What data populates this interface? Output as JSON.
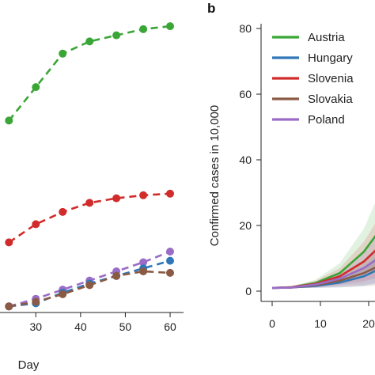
{
  "colors": {
    "green": "#3aa636",
    "blue": "#2f77b8",
    "red": "#d22b2b",
    "brown": "#8a5a44",
    "purple": "#9a6cc8"
  },
  "chart_data": [
    {
      "panel": "",
      "type": "line",
      "xlabel": "Day",
      "ylabel": "",
      "xlim": [
        22,
        63
      ],
      "ylim": [
        0,
        100
      ],
      "xticks": [
        "30",
        "40",
        "50",
        "60"
      ],
      "style": "dashed-with-markers",
      "series": [
        {
          "color": "green",
          "x": [
            24,
            30,
            36,
            42,
            48,
            54,
            60
          ],
          "y": [
            63,
            74,
            85,
            89,
            91,
            93,
            94
          ]
        },
        {
          "color": "red",
          "x": [
            24,
            30,
            36,
            42,
            48,
            54,
            60
          ],
          "y": [
            23,
            29,
            33,
            36,
            37.5,
            38.5,
            39
          ]
        },
        {
          "color": "purple",
          "x": [
            24,
            30,
            36,
            42,
            48,
            54,
            60
          ],
          "y": [
            2,
            4.5,
            7.5,
            10.5,
            13.5,
            16.5,
            20
          ]
        },
        {
          "color": "blue",
          "x": [
            24,
            30,
            36,
            42,
            48,
            54,
            60
          ],
          "y": [
            2,
            3,
            6.5,
            9.5,
            12,
            14.5,
            17
          ]
        },
        {
          "color": "brown",
          "x": [
            24,
            30,
            36,
            42,
            48,
            54,
            60
          ],
          "y": [
            2,
            3.5,
            6,
            9,
            12,
            13.5,
            13
          ]
        }
      ]
    },
    {
      "panel": "b",
      "type": "line",
      "xlabel": "",
      "ylabel": "Confirmed cases in 10,000",
      "xlim": [
        -3,
        28
      ],
      "ylim": [
        -3,
        88
      ],
      "xticks": [
        "0",
        "10",
        "20"
      ],
      "yticks": [
        "0",
        "20",
        "40",
        "60",
        "80"
      ],
      "style": "solid-with-confidence-band",
      "legend": "top-left",
      "series": [
        {
          "name": "Austria",
          "color": "green",
          "x": [
            1,
            5,
            10,
            15,
            20,
            25
          ],
          "y": [
            1,
            1.2,
            2.5,
            5.5,
            12,
            22
          ],
          "band": [
            0,
            0.3,
            1,
            3,
            7,
            14
          ]
        },
        {
          "name": "Hungary",
          "color": "blue",
          "x": [
            1,
            5,
            10,
            15,
            20,
            25
          ],
          "y": [
            1,
            1.1,
            1.6,
            2.6,
            4.5,
            8
          ],
          "band": [
            0,
            0.2,
            0.6,
            1.5,
            3,
            5
          ]
        },
        {
          "name": "Slovenia",
          "color": "red",
          "x": [
            1,
            5,
            10,
            15,
            20,
            25
          ],
          "y": [
            1,
            1.2,
            2.2,
            4.5,
            9,
            16
          ],
          "band": [
            0,
            0.3,
            1,
            2.5,
            6,
            11
          ]
        },
        {
          "name": "Slovakia",
          "color": "brown",
          "x": [
            1,
            5,
            10,
            15,
            20,
            25
          ],
          "y": [
            1,
            1.1,
            1.8,
            3.2,
            5.5,
            9
          ],
          "band": [
            0,
            0.2,
            0.8,
            2,
            4,
            7
          ]
        },
        {
          "name": "Poland",
          "color": "purple",
          "x": [
            1,
            5,
            10,
            15,
            20,
            25
          ],
          "y": [
            1,
            1.1,
            2,
            3.8,
            7,
            12
          ],
          "band": [
            0,
            0.2,
            0.9,
            2.2,
            5,
            9
          ]
        }
      ]
    }
  ]
}
